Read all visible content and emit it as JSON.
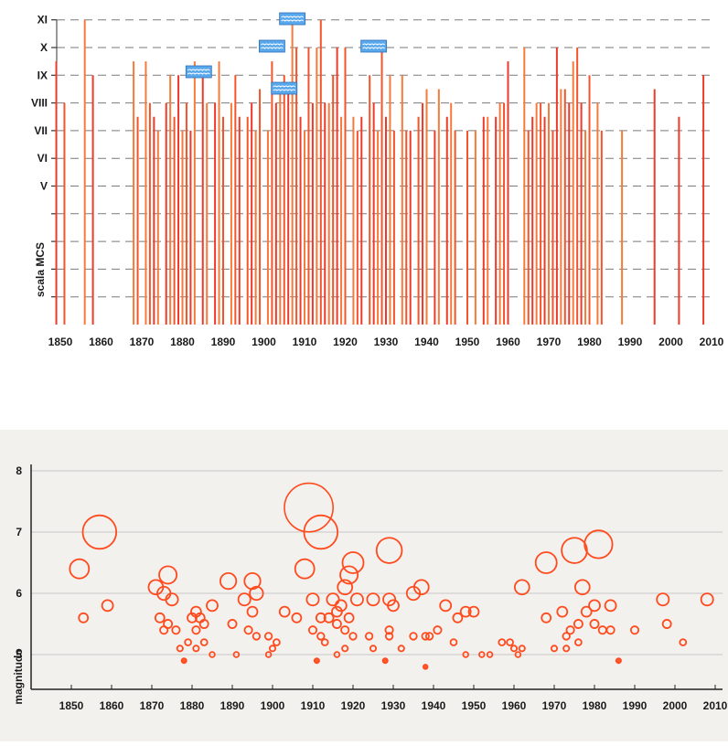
{
  "chart_data": [
    {
      "type": "bar",
      "ylabel": "scala MCS",
      "y_tick_labels": [
        "XI",
        "X",
        "IX",
        "VIII",
        "VII",
        "VI",
        "V"
      ],
      "x_tick_labels": [
        "1850",
        "1860",
        "1870",
        "1880",
        "1890",
        "1900",
        "1910",
        "1920",
        "1930",
        "1940",
        "1950",
        "1960",
        "1970",
        "1980",
        "1990",
        "2000",
        "2010"
      ],
      "xlim": [
        1850,
        2010
      ],
      "ylim": [
        0,
        11
      ],
      "grid": true,
      "tsunami_marker_years": [
        1884,
        1902,
        1905,
        1907,
        1927
      ],
      "events": [
        {
          "year": 1849,
          "intensity": 9.5
        },
        {
          "year": 1851,
          "intensity": 8
        },
        {
          "year": 1856,
          "intensity": 11
        },
        {
          "year": 1858,
          "intensity": 9
        },
        {
          "year": 1868,
          "intensity": 9.5
        },
        {
          "year": 1869,
          "intensity": 7.5
        },
        {
          "year": 1871,
          "intensity": 9.5
        },
        {
          "year": 1872,
          "intensity": 8
        },
        {
          "year": 1873,
          "intensity": 7.5
        },
        {
          "year": 1874,
          "intensity": 7
        },
        {
          "year": 1876,
          "intensity": 8
        },
        {
          "year": 1877,
          "intensity": 9
        },
        {
          "year": 1878,
          "intensity": 7.5
        },
        {
          "year": 1879,
          "intensity": 9
        },
        {
          "year": 1880,
          "intensity": 7
        },
        {
          "year": 1881,
          "intensity": 8
        },
        {
          "year": 1882,
          "intensity": 7
        },
        {
          "year": 1883,
          "intensity": 9.5
        },
        {
          "year": 1885,
          "intensity": 9
        },
        {
          "year": 1886,
          "intensity": 8
        },
        {
          "year": 1888,
          "intensity": 8
        },
        {
          "year": 1889,
          "intensity": 9.5
        },
        {
          "year": 1890,
          "intensity": 7.5
        },
        {
          "year": 1892,
          "intensity": 8
        },
        {
          "year": 1893,
          "intensity": 9
        },
        {
          "year": 1894,
          "intensity": 7.5
        },
        {
          "year": 1896,
          "intensity": 7.5
        },
        {
          "year": 1897,
          "intensity": 8
        },
        {
          "year": 1898,
          "intensity": 7
        },
        {
          "year": 1899,
          "intensity": 8.5
        },
        {
          "year": 1901,
          "intensity": 7
        },
        {
          "year": 1902,
          "intensity": 9.5
        },
        {
          "year": 1903,
          "intensity": 8
        },
        {
          "year": 1904,
          "intensity": 8.5
        },
        {
          "year": 1905,
          "intensity": 9
        },
        {
          "year": 1906,
          "intensity": 8.5
        },
        {
          "year": 1907,
          "intensity": 11
        },
        {
          "year": 1908,
          "intensity": 10
        },
        {
          "year": 1909,
          "intensity": 7.5
        },
        {
          "year": 1910,
          "intensity": 7
        },
        {
          "year": 1911,
          "intensity": 10
        },
        {
          "year": 1912,
          "intensity": 8
        },
        {
          "year": 1913,
          "intensity": 10
        },
        {
          "year": 1914,
          "intensity": 11
        },
        {
          "year": 1915,
          "intensity": 8
        },
        {
          "year": 1916,
          "intensity": 8
        },
        {
          "year": 1917,
          "intensity": 9
        },
        {
          "year": 1918,
          "intensity": 10
        },
        {
          "year": 1919,
          "intensity": 7.5
        },
        {
          "year": 1920,
          "intensity": 10
        },
        {
          "year": 1922,
          "intensity": 7.5
        },
        {
          "year": 1923,
          "intensity": 7
        },
        {
          "year": 1924,
          "intensity": 7.5
        },
        {
          "year": 1926,
          "intensity": 9
        },
        {
          "year": 1927,
          "intensity": 8
        },
        {
          "year": 1928,
          "intensity": 7
        },
        {
          "year": 1929,
          "intensity": 10
        },
        {
          "year": 1930,
          "intensity": 7.5
        },
        {
          "year": 1931,
          "intensity": 9
        },
        {
          "year": 1932,
          "intensity": 7
        },
        {
          "year": 1934,
          "intensity": 9
        },
        {
          "year": 1935,
          "intensity": 7
        },
        {
          "year": 1936,
          "intensity": 7
        },
        {
          "year": 1938,
          "intensity": 7.5
        },
        {
          "year": 1939,
          "intensity": 8
        },
        {
          "year": 1940,
          "intensity": 8.5
        },
        {
          "year": 1942,
          "intensity": 7
        },
        {
          "year": 1943,
          "intensity": 8.5
        },
        {
          "year": 1945,
          "intensity": 7.5
        },
        {
          "year": 1946,
          "intensity": 8
        },
        {
          "year": 1947,
          "intensity": 7
        },
        {
          "year": 1950,
          "intensity": 7
        },
        {
          "year": 1952,
          "intensity": 7
        },
        {
          "year": 1954,
          "intensity": 7.5
        },
        {
          "year": 1955,
          "intensity": 7.5
        },
        {
          "year": 1957,
          "intensity": 7.5
        },
        {
          "year": 1958,
          "intensity": 8
        },
        {
          "year": 1959,
          "intensity": 8
        },
        {
          "year": 1960,
          "intensity": 9.5
        },
        {
          "year": 1964,
          "intensity": 10
        },
        {
          "year": 1965,
          "intensity": 7
        },
        {
          "year": 1966,
          "intensity": 7.5
        },
        {
          "year": 1967,
          "intensity": 8
        },
        {
          "year": 1968,
          "intensity": 8
        },
        {
          "year": 1969,
          "intensity": 7.5
        },
        {
          "year": 1970,
          "intensity": 8
        },
        {
          "year": 1971,
          "intensity": 7
        },
        {
          "year": 1972,
          "intensity": 10
        },
        {
          "year": 1973,
          "intensity": 8.5
        },
        {
          "year": 1974,
          "intensity": 8.5
        },
        {
          "year": 1975,
          "intensity": 8
        },
        {
          "year": 1976,
          "intensity": 9.5
        },
        {
          "year": 1977,
          "intensity": 10
        },
        {
          "year": 1978,
          "intensity": 8
        },
        {
          "year": 1979,
          "intensity": 7
        },
        {
          "year": 1980,
          "intensity": 9
        },
        {
          "year": 1982,
          "intensity": 8
        },
        {
          "year": 1983,
          "intensity": 7
        },
        {
          "year": 1988,
          "intensity": 7
        },
        {
          "year": 1996,
          "intensity": 8.5
        },
        {
          "year": 2002,
          "intensity": 7.5
        },
        {
          "year": 2008,
          "intensity": 9
        }
      ]
    },
    {
      "type": "scatter",
      "ylabel": "magnitudo",
      "x_tick_labels": [
        "1850",
        "1860",
        "1870",
        "1880",
        "1890",
        "1900",
        "1910",
        "1920",
        "1930",
        "1940",
        "1950",
        "1960",
        "1970",
        "1980",
        "1990",
        "2000",
        "2010"
      ],
      "y_tick_labels": [
        "8",
        "7",
        "6",
        "5"
      ],
      "xlim": [
        1844,
        2012
      ],
      "ylim": [
        3.85,
        8.1
      ],
      "grid": true,
      "encoding": "circle size scales with magnitude",
      "events": [
        {
          "year": 1857,
          "mag": 7.0
        },
        {
          "year": 1852,
          "mag": 6.4
        },
        {
          "year": 1853,
          "mag": 5.6
        },
        {
          "year": 1859,
          "mag": 5.8
        },
        {
          "year": 1871,
          "mag": 6.1
        },
        {
          "year": 1874,
          "mag": 6.3
        },
        {
          "year": 1873,
          "mag": 6.0
        },
        {
          "year": 1875,
          "mag": 5.9
        },
        {
          "year": 1872,
          "mag": 5.6
        },
        {
          "year": 1873,
          "mag": 5.4
        },
        {
          "year": 1874,
          "mag": 5.5
        },
        {
          "year": 1876,
          "mag": 5.4
        },
        {
          "year": 1877,
          "mag": 5.1
        },
        {
          "year": 1878,
          "mag": 4.9
        },
        {
          "year": 1881,
          "mag": 5.7
        },
        {
          "year": 1880,
          "mag": 5.6
        },
        {
          "year": 1881,
          "mag": 5.4
        },
        {
          "year": 1882,
          "mag": 5.6
        },
        {
          "year": 1883,
          "mag": 5.5
        },
        {
          "year": 1879,
          "mag": 5.2
        },
        {
          "year": 1881,
          "mag": 5.1
        },
        {
          "year": 1883,
          "mag": 5.2
        },
        {
          "year": 1885,
          "mag": 5.0
        },
        {
          "year": 1889,
          "mag": 6.2
        },
        {
          "year": 1885,
          "mag": 5.8
        },
        {
          "year": 1890,
          "mag": 5.5
        },
        {
          "year": 1891,
          "mag": 5.0
        },
        {
          "year": 1895,
          "mag": 6.2
        },
        {
          "year": 1896,
          "mag": 6.0
        },
        {
          "year": 1893,
          "mag": 5.9
        },
        {
          "year": 1895,
          "mag": 5.7
        },
        {
          "year": 1894,
          "mag": 5.4
        },
        {
          "year": 1896,
          "mag": 5.3
        },
        {
          "year": 1899,
          "mag": 5.3
        },
        {
          "year": 1900,
          "mag": 5.1
        },
        {
          "year": 1899,
          "mag": 5.0
        },
        {
          "year": 1901,
          "mag": 5.2
        },
        {
          "year": 1909,
          "mag": 7.4
        },
        {
          "year": 1912,
          "mag": 7.0
        },
        {
          "year": 1908,
          "mag": 6.4
        },
        {
          "year": 1903,
          "mag": 5.7
        },
        {
          "year": 1906,
          "mag": 5.6
        },
        {
          "year": 1910,
          "mag": 5.9
        },
        {
          "year": 1912,
          "mag": 5.6
        },
        {
          "year": 1910,
          "mag": 5.4
        },
        {
          "year": 1912,
          "mag": 5.3
        },
        {
          "year": 1913,
          "mag": 5.2
        },
        {
          "year": 1915,
          "mag": 5.9
        },
        {
          "year": 1917,
          "mag": 5.8
        },
        {
          "year": 1918,
          "mag": 6.1
        },
        {
          "year": 1919,
          "mag": 6.3
        },
        {
          "year": 1920,
          "mag": 6.5
        },
        {
          "year": 1921,
          "mag": 5.9
        },
        {
          "year": 1914,
          "mag": 5.6
        },
        {
          "year": 1916,
          "mag": 5.7
        },
        {
          "year": 1919,
          "mag": 5.6
        },
        {
          "year": 1916,
          "mag": 5.5
        },
        {
          "year": 1918,
          "mag": 5.4
        },
        {
          "year": 1911,
          "mag": 4.9
        },
        {
          "year": 1916,
          "mag": 5.0
        },
        {
          "year": 1918,
          "mag": 5.1
        },
        {
          "year": 1920,
          "mag": 5.3
        },
        {
          "year": 1924,
          "mag": 5.3
        },
        {
          "year": 1925,
          "mag": 5.1
        },
        {
          "year": 1925,
          "mag": 5.9
        },
        {
          "year": 1929,
          "mag": 6.7
        },
        {
          "year": 1929,
          "mag": 5.9
        },
        {
          "year": 1930,
          "mag": 5.8
        },
        {
          "year": 1929,
          "mag": 5.4
        },
        {
          "year": 1929,
          "mag": 5.3
        },
        {
          "year": 1932,
          "mag": 5.1
        },
        {
          "year": 1928,
          "mag": 4.9
        },
        {
          "year": 1935,
          "mag": 6.0
        },
        {
          "year": 1937,
          "mag": 6.1
        },
        {
          "year": 1935,
          "mag": 5.3
        },
        {
          "year": 1938,
          "mag": 5.3
        },
        {
          "year": 1939,
          "mag": 5.3
        },
        {
          "year": 1938,
          "mag": 4.8
        },
        {
          "year": 1943,
          "mag": 5.8
        },
        {
          "year": 1946,
          "mag": 5.6
        },
        {
          "year": 1948,
          "mag": 5.7
        },
        {
          "year": 1950,
          "mag": 5.7
        },
        {
          "year": 1941,
          "mag": 5.4
        },
        {
          "year": 1945,
          "mag": 5.2
        },
        {
          "year": 1948,
          "mag": 5.0
        },
        {
          "year": 1952,
          "mag": 5.0
        },
        {
          "year": 1954,
          "mag": 5.0
        },
        {
          "year": 1957,
          "mag": 5.2
        },
        {
          "year": 1959,
          "mag": 5.2
        },
        {
          "year": 1960,
          "mag": 5.1
        },
        {
          "year": 1962,
          "mag": 6.1
        },
        {
          "year": 1968,
          "mag": 6.5
        },
        {
          "year": 1975,
          "mag": 6.7
        },
        {
          "year": 1981,
          "mag": 6.8
        },
        {
          "year": 1977,
          "mag": 6.1
        },
        {
          "year": 1980,
          "mag": 5.8
        },
        {
          "year": 1984,
          "mag": 5.8
        },
        {
          "year": 1968,
          "mag": 5.6
        },
        {
          "year": 1972,
          "mag": 5.7
        },
        {
          "year": 1978,
          "mag": 5.7
        },
        {
          "year": 1976,
          "mag": 5.5
        },
        {
          "year": 1980,
          "mag": 5.5
        },
        {
          "year": 1982,
          "mag": 5.4
        },
        {
          "year": 1984,
          "mag": 5.4
        },
        {
          "year": 1974,
          "mag": 5.4
        },
        {
          "year": 1976,
          "mag": 5.2
        },
        {
          "year": 1970,
          "mag": 5.1
        },
        {
          "year": 1973,
          "mag": 5.3
        },
        {
          "year": 1962,
          "mag": 5.1
        },
        {
          "year": 1961,
          "mag": 5.0
        },
        {
          "year": 1973,
          "mag": 5.1
        },
        {
          "year": 1990,
          "mag": 5.4
        },
        {
          "year": 1997,
          "mag": 5.9
        },
        {
          "year": 1998,
          "mag": 5.5
        },
        {
          "year": 2008,
          "mag": 5.9
        },
        {
          "year": 2002,
          "mag": 5.2
        },
        {
          "year": 1986,
          "mag": 4.9
        }
      ]
    }
  ]
}
